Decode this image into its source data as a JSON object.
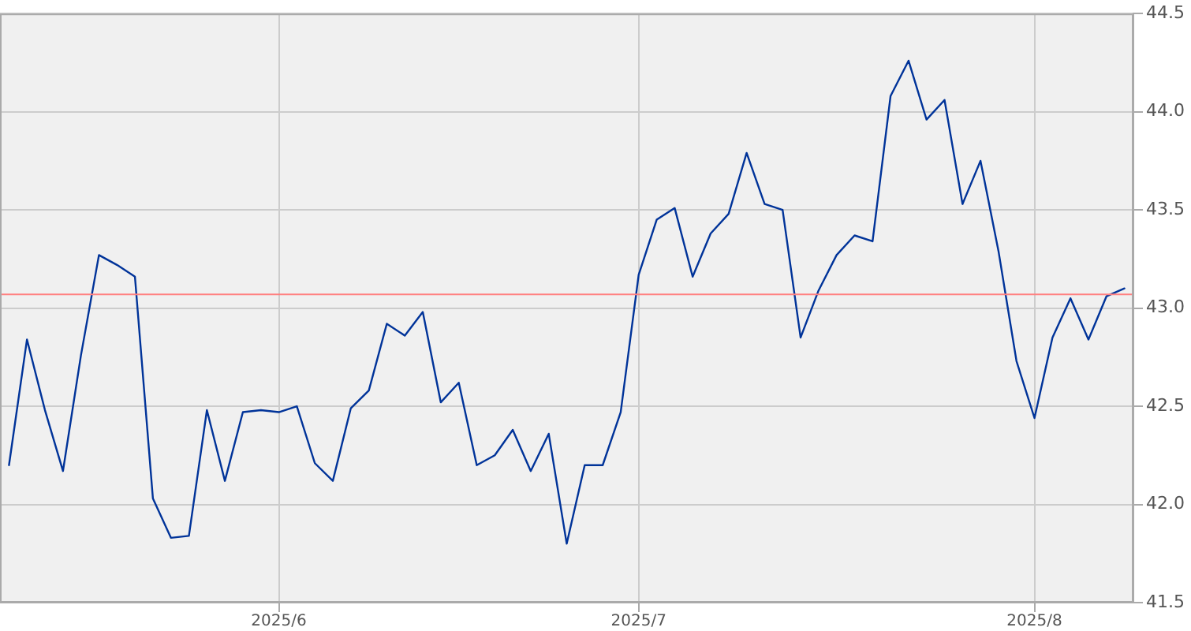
{
  "chart_data": {
    "type": "line",
    "categories": [
      null,
      null,
      null,
      null,
      null,
      null,
      null,
      null,
      null,
      null,
      null,
      null,
      null,
      null,
      null,
      "2025/6",
      null,
      null,
      null,
      null,
      null,
      null,
      null,
      null,
      null,
      null,
      null,
      null,
      null,
      null,
      null,
      null,
      null,
      null,
      null,
      "2025/7",
      null,
      null,
      null,
      null,
      null,
      null,
      null,
      null,
      null,
      null,
      null,
      null,
      null,
      null,
      null,
      null,
      null,
      null,
      null,
      null,
      null,
      "2025/8",
      null,
      null,
      null,
      null,
      null
    ],
    "series": [
      {
        "color": "#003399",
        "values": [
          42.2,
          42.84,
          42.48,
          42.17,
          42.76,
          43.27,
          43.22,
          43.16,
          42.03,
          41.83,
          41.84,
          42.48,
          42.12,
          42.47,
          42.48,
          42.47,
          42.5,
          42.21,
          42.12,
          42.49,
          42.58,
          42.92,
          42.86,
          42.98,
          42.52,
          42.62,
          42.2,
          42.25,
          42.38,
          42.17,
          42.36,
          41.8,
          42.2,
          42.2,
          42.47,
          43.17,
          43.45,
          43.51,
          43.16,
          43.38,
          43.48,
          43.79,
          43.53,
          43.5,
          42.85,
          43.09,
          43.27,
          43.37,
          43.34,
          44.08,
          44.26,
          43.96,
          44.06,
          43.53,
          43.75,
          43.29,
          42.73,
          42.44,
          42.85,
          43.05,
          42.84,
          43.06,
          43.1
        ]
      }
    ],
    "ylim": [
      41.5,
      44.5
    ],
    "yticks": [
      41.5,
      {
        "value": 42,
        "label": "42.0"
      },
      42.5,
      {
        "value": 43,
        "label": "43.0"
      },
      43.5,
      {
        "value": 44,
        "label": "44.0"
      },
      44.5
    ],
    "ref_lines": [
      {
        "axis": "y",
        "value": 43.07,
        "color": "#ff8080"
      }
    ],
    "grid": true,
    "marker": "none",
    "line_style": "solid",
    "legend": false
  }
}
